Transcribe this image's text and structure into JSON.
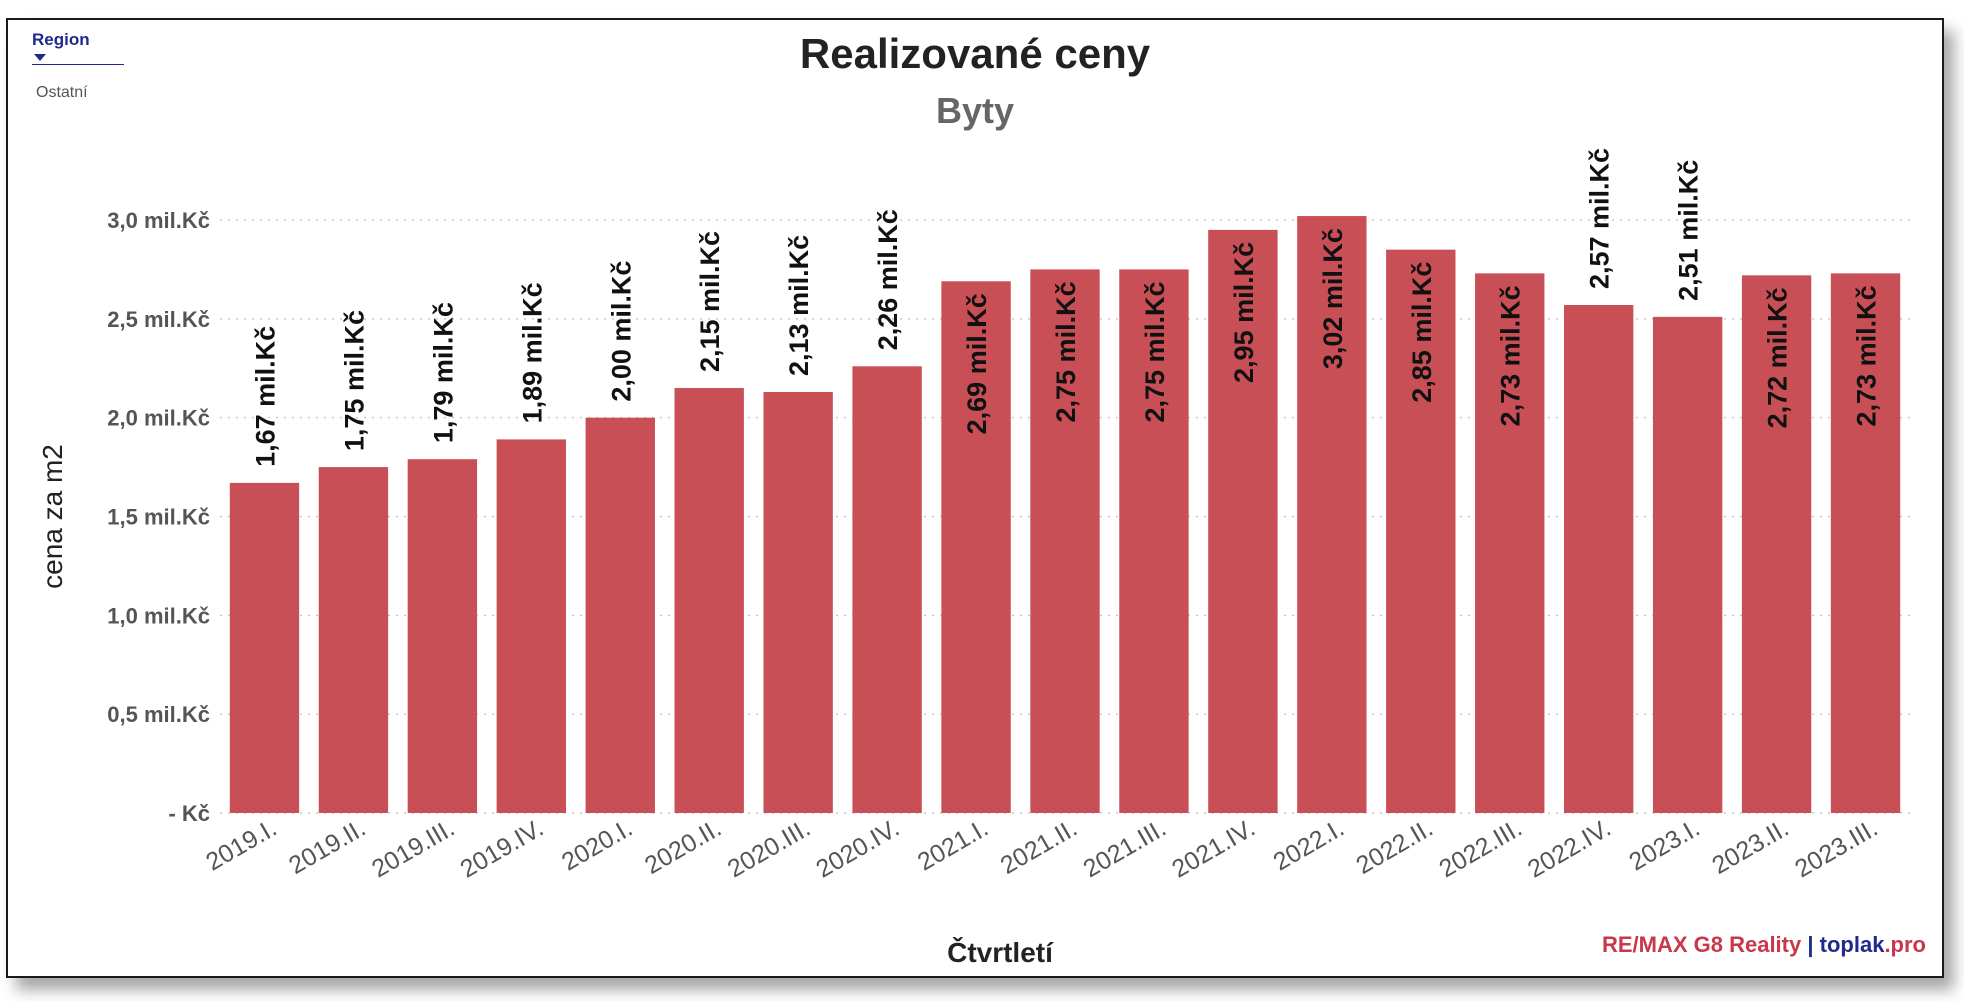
{
  "slicer": {
    "title": "Region",
    "value": "Ostatní"
  },
  "brand": {
    "remax": "RE/MAX G8 Reality",
    "separator": "|",
    "toplak": "toplak",
    "pro": ".pro"
  },
  "colors": {
    "bar": "#c94f56",
    "grid": "#c8c8c8",
    "axis_text": "#555555",
    "label": "#111111"
  },
  "chart_data": {
    "type": "bar",
    "title": "Realizované ceny",
    "subtitle": "Byty",
    "xlabel": "Čtvrtletí",
    "ylabel": "cena za m2",
    "ylim": [
      0,
      3.0
    ],
    "yticks": [
      0,
      0.5,
      1.0,
      1.5,
      2.0,
      2.5,
      3.0
    ],
    "ytick_labels": [
      "- Kč",
      "0,5 mil.Kč",
      "1,0 mil.Kč",
      "1,5 mil.Kč",
      "2,0 mil.Kč",
      "2,5 mil.Kč",
      "3,0 mil.Kč"
    ],
    "grid": true,
    "categories": [
      "2019.I.",
      "2019.II.",
      "2019.III.",
      "2019.IV.",
      "2020.I.",
      "2020.II.",
      "2020.III.",
      "2020.IV.",
      "2021.I.",
      "2021.II.",
      "2021.III.",
      "2021.IV.",
      "2022.I.",
      "2022.II.",
      "2022.III.",
      "2022.IV.",
      "2023.I.",
      "2023.II.",
      "2023.III."
    ],
    "values": [
      1.67,
      1.75,
      1.79,
      1.89,
      2.0,
      2.15,
      2.13,
      2.26,
      2.69,
      2.75,
      2.75,
      2.95,
      3.02,
      2.85,
      2.73,
      2.57,
      2.51,
      2.72,
      2.73
    ],
    "data_labels": [
      "1,67 mil.Kč",
      "1,75 mil.Kč",
      "1,79 mil.Kč",
      "1,89 mil.Kč",
      "2,00 mil.Kč",
      "2,15 mil.Kč",
      "2,13 mil.Kč",
      "2,26 mil.Kč",
      "2,69 mil.Kč",
      "2,75 mil.Kč",
      "2,75 mil.Kč",
      "2,95 mil.Kč",
      "3,02 mil.Kč",
      "2,85 mil.Kč",
      "2,73 mil.Kč",
      "2,57 mil.Kč",
      "2,51 mil.Kč",
      "2,72 mil.Kč",
      "2,73 mil.Kč"
    ]
  }
}
